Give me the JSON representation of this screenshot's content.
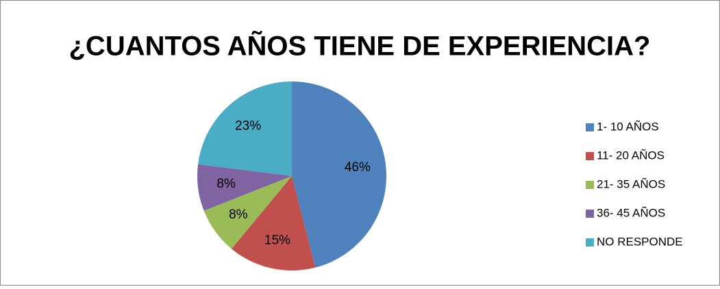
{
  "chart_data": {
    "type": "pie",
    "title": "¿CUANTOS AÑOS TIENE DE EXPERIENCIA?",
    "categories": [
      "1- 10 AÑOS",
      "11- 20 AÑOS",
      "21- 35 AÑOS",
      "36- 45 AÑOS",
      "NO RESPONDE"
    ],
    "values": [
      46,
      15,
      8,
      8,
      23
    ],
    "value_labels": [
      "46%",
      "15%",
      "8%",
      "8%",
      "23%"
    ],
    "colors": [
      "#4f81bd",
      "#c0504d",
      "#9bbb59",
      "#8064a2",
      "#4bacc6"
    ],
    "legend": "right"
  }
}
